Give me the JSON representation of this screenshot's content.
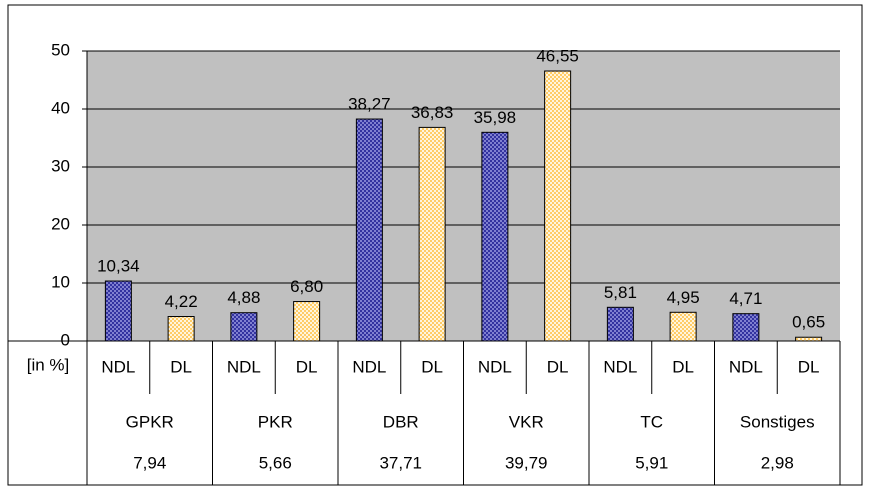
{
  "chart_data": {
    "type": "bar",
    "y_label": "[in %]",
    "categories": [
      "GPKR",
      "PKR",
      "DBR",
      "VKR",
      "TC",
      "Sonstiges"
    ],
    "group_values": [
      7.94,
      5.66,
      37.71,
      39.79,
      5.91,
      2.98
    ],
    "group_value_labels": [
      "7,94",
      "5,66",
      "37,71",
      "39,79",
      "5,91",
      "2,98"
    ],
    "series": [
      {
        "name": "NDL",
        "color": "#3333a0",
        "values": [
          10.34,
          4.88,
          38.27,
          35.98,
          5.81,
          4.71
        ],
        "value_labels": [
          "10,34",
          "4,88",
          "38,27",
          "35,98",
          "5,81",
          "4,71"
        ]
      },
      {
        "name": "DL",
        "color": "#ffcc66",
        "values": [
          4.22,
          6.8,
          36.83,
          46.55,
          4.95,
          0.65
        ],
        "value_labels": [
          "4,22",
          "6,80",
          "36,83",
          "46,55",
          "4,95",
          "0,65"
        ]
      }
    ],
    "ylim": [
      0,
      50
    ],
    "yticks": [
      0,
      10,
      20,
      30,
      40,
      50
    ],
    "grid": true
  }
}
